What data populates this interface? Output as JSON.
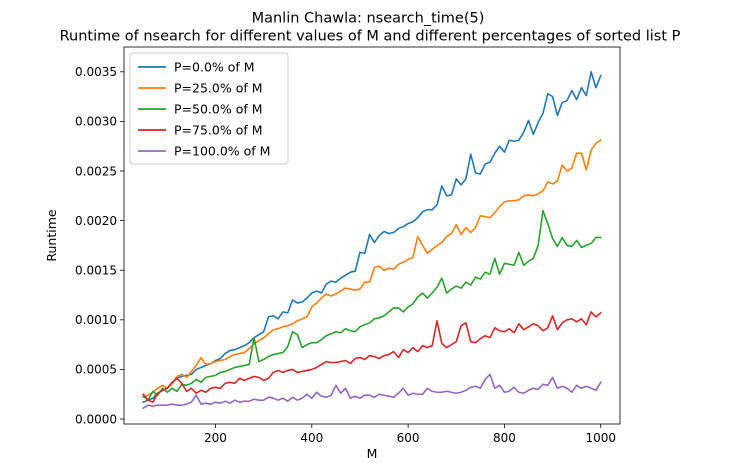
{
  "chart_data": {
    "type": "line",
    "title": "Manlin Chawla: nsearch_time(5)",
    "subtitle": "Runtime of nsearch for different values of M and different percentages of sorted list P",
    "xlabel": "M",
    "ylabel": "Runtime",
    "xlim": [
      10,
      1040
    ],
    "ylim": [
      -5e-05,
      0.00375
    ],
    "xticks": [
      200,
      400,
      600,
      800,
      1000
    ],
    "xtick_labels": [
      "200",
      "400",
      "600",
      "800",
      "1000"
    ],
    "yticks": [
      0.0,
      0.0005,
      0.001,
      0.0015,
      0.002,
      0.0025,
      0.003,
      0.0035
    ],
    "ytick_labels": [
      "0.0000",
      "0.0005",
      "0.0010",
      "0.0015",
      "0.0020",
      "0.0025",
      "0.0030",
      "0.0035"
    ],
    "grid": false,
    "legend_position": "top-left",
    "x": [
      50,
      60,
      70,
      80,
      90,
      100,
      110,
      120,
      130,
      140,
      150,
      160,
      170,
      180,
      190,
      200,
      210,
      220,
      230,
      240,
      250,
      260,
      270,
      280,
      290,
      300,
      310,
      320,
      330,
      340,
      350,
      360,
      370,
      380,
      390,
      400,
      410,
      420,
      430,
      440,
      450,
      460,
      470,
      480,
      490,
      500,
      510,
      520,
      530,
      540,
      550,
      560,
      570,
      580,
      590,
      600,
      610,
      620,
      630,
      640,
      650,
      660,
      670,
      680,
      690,
      700,
      710,
      720,
      730,
      740,
      750,
      760,
      770,
      780,
      790,
      800,
      810,
      820,
      830,
      840,
      850,
      860,
      870,
      880,
      890,
      900,
      910,
      920,
      930,
      940,
      950,
      960,
      970,
      980,
      990,
      1000
    ],
    "series": [
      {
        "name": "P=0.0% of M",
        "color": "#1f77b4",
        "values": [
          0.00017,
          0.00019,
          0.00021,
          0.00026,
          0.00029,
          0.00031,
          0.00037,
          0.00041,
          0.00043,
          0.00044,
          0.00045,
          0.0005,
          0.00052,
          0.00054,
          0.00056,
          0.00059,
          0.00061,
          0.00066,
          0.00069,
          0.0007,
          0.00072,
          0.00074,
          0.00077,
          0.00082,
          0.00085,
          0.00088,
          0.00103,
          0.00104,
          0.00101,
          0.00108,
          0.00107,
          0.0012,
          0.00117,
          0.00118,
          0.00122,
          0.00127,
          0.00129,
          0.00127,
          0.00136,
          0.00139,
          0.00138,
          0.00142,
          0.00145,
          0.00148,
          0.00149,
          0.00168,
          0.00167,
          0.00186,
          0.00178,
          0.00185,
          0.00189,
          0.00187,
          0.00188,
          0.00192,
          0.00194,
          0.00197,
          0.00199,
          0.00203,
          0.00209,
          0.00211,
          0.00211,
          0.00216,
          0.00235,
          0.00225,
          0.00226,
          0.00242,
          0.00236,
          0.00242,
          0.00267,
          0.00248,
          0.00247,
          0.00257,
          0.00259,
          0.00268,
          0.00275,
          0.00269,
          0.00281,
          0.0028,
          0.00281,
          0.00289,
          0.00301,
          0.00287,
          0.00299,
          0.00308,
          0.00328,
          0.00325,
          0.00306,
          0.00319,
          0.00321,
          0.00331,
          0.00322,
          0.00334,
          0.00326,
          0.0035,
          0.00334,
          0.00346
        ]
      },
      {
        "name": "P=25.0% of M",
        "color": "#ff7f0e",
        "values": [
          0.00022,
          0.00024,
          0.00027,
          0.00031,
          0.00034,
          0.00031,
          0.00036,
          0.00043,
          0.00045,
          0.00042,
          0.00048,
          0.00054,
          0.00062,
          0.00055,
          0.00056,
          0.00058,
          0.00059,
          0.0006,
          0.00063,
          0.00065,
          0.00066,
          0.00067,
          0.00071,
          0.00076,
          0.00079,
          0.00082,
          0.00086,
          0.0009,
          0.00091,
          0.00093,
          0.00094,
          0.00096,
          0.00099,
          0.00101,
          0.00103,
          0.00113,
          0.00117,
          0.00122,
          0.00126,
          0.00124,
          0.00126,
          0.00129,
          0.00132,
          0.00131,
          0.0013,
          0.00131,
          0.00138,
          0.00138,
          0.00153,
          0.00154,
          0.0015,
          0.00152,
          0.00151,
          0.00156,
          0.00158,
          0.00161,
          0.00163,
          0.00184,
          0.00175,
          0.00167,
          0.00171,
          0.00175,
          0.00178,
          0.00184,
          0.00187,
          0.00196,
          0.00186,
          0.00193,
          0.00188,
          0.00193,
          0.00205,
          0.00204,
          0.00203,
          0.00208,
          0.00214,
          0.00219,
          0.0022,
          0.0022,
          0.00221,
          0.00225,
          0.00226,
          0.00225,
          0.00227,
          0.0023,
          0.00239,
          0.00237,
          0.0024,
          0.00256,
          0.0025,
          0.00253,
          0.00268,
          0.00268,
          0.00251,
          0.00271,
          0.00278,
          0.00281
        ]
      },
      {
        "name": "P=50.0% of M",
        "color": "#2ca02c",
        "values": [
          0.00023,
          0.00019,
          0.00028,
          0.00024,
          0.00031,
          0.00027,
          0.00031,
          0.00028,
          0.00035,
          0.00034,
          0.00036,
          0.0004,
          0.00037,
          0.00042,
          0.00043,
          0.00044,
          0.00047,
          0.00048,
          0.0005,
          0.00052,
          0.00053,
          0.00054,
          0.00055,
          0.00082,
          0.00058,
          0.0006,
          0.00063,
          0.00065,
          0.00066,
          0.00067,
          0.00073,
          0.00088,
          0.00085,
          0.00072,
          0.00075,
          0.00077,
          0.00077,
          0.0008,
          0.00084,
          0.00086,
          0.00088,
          0.00087,
          0.00091,
          0.00089,
          0.00088,
          0.00093,
          0.00095,
          0.00097,
          0.00101,
          0.00102,
          0.00104,
          0.00108,
          0.00112,
          0.00112,
          0.00108,
          0.00113,
          0.00116,
          0.00123,
          0.00127,
          0.00122,
          0.00127,
          0.00133,
          0.00142,
          0.00127,
          0.00131,
          0.00134,
          0.00132,
          0.00138,
          0.00135,
          0.00143,
          0.00141,
          0.00148,
          0.00146,
          0.00162,
          0.00146,
          0.00157,
          0.00156,
          0.00155,
          0.00168,
          0.00155,
          0.00159,
          0.00162,
          0.00175,
          0.0021,
          0.00197,
          0.00182,
          0.00174,
          0.00183,
          0.00175,
          0.00174,
          0.0018,
          0.00173,
          0.00175,
          0.00177,
          0.00183,
          0.00183
        ]
      },
      {
        "name": "P=75.0% of M",
        "color": "#d62728",
        "values": [
          0.00025,
          0.00019,
          0.00017,
          0.00026,
          0.00029,
          0.00031,
          0.00037,
          0.00041,
          0.00036,
          0.00028,
          0.00031,
          0.00026,
          0.00029,
          0.00027,
          0.00031,
          0.00032,
          0.00031,
          0.00036,
          0.00037,
          0.00036,
          0.00041,
          0.00039,
          0.00041,
          0.00043,
          0.00042,
          0.00039,
          0.00041,
          0.00047,
          0.00049,
          0.00047,
          0.00049,
          0.0005,
          0.00047,
          0.00048,
          0.00049,
          0.0005,
          0.00052,
          0.00055,
          0.00058,
          0.00057,
          0.00057,
          0.00058,
          0.00059,
          0.00056,
          0.00061,
          0.00062,
          0.0006,
          0.00064,
          0.00063,
          0.00061,
          0.00064,
          0.00065,
          0.00068,
          0.00062,
          0.0007,
          0.00067,
          0.00072,
          0.00068,
          0.00074,
          0.00072,
          0.00074,
          0.00099,
          0.00076,
          0.00072,
          0.00075,
          0.00078,
          0.00094,
          0.00097,
          0.00078,
          0.00077,
          0.00081,
          0.00084,
          0.00082,
          0.00092,
          0.00089,
          0.00088,
          0.00091,
          0.00087,
          0.00096,
          0.0009,
          0.00093,
          0.00096,
          0.00094,
          0.00089,
          0.00092,
          0.00104,
          0.0009,
          0.00097,
          0.001,
          0.00101,
          0.00098,
          0.00101,
          0.00095,
          0.00108,
          0.00103,
          0.00107
        ]
      },
      {
        "name": "P=100.0% of M",
        "color": "#9467bd",
        "values": [
          0.00011,
          0.00014,
          0.00013,
          0.00014,
          0.00014,
          0.00014,
          0.00015,
          0.00014,
          0.00014,
          0.00015,
          0.00017,
          0.00024,
          0.00015,
          0.00016,
          0.00015,
          0.00017,
          0.00016,
          0.00018,
          0.00016,
          0.00019,
          0.00017,
          0.00018,
          0.00018,
          0.0002,
          0.00019,
          0.00019,
          0.00022,
          0.00021,
          0.00019,
          0.00021,
          0.00018,
          0.00022,
          0.00019,
          0.00021,
          0.00025,
          0.00021,
          0.00027,
          0.00023,
          0.00022,
          0.00024,
          0.00034,
          0.00026,
          0.00031,
          0.00021,
          0.00023,
          0.00021,
          0.00024,
          0.00024,
          0.00022,
          0.00025,
          0.00024,
          0.00023,
          0.00022,
          0.00026,
          0.00031,
          0.00024,
          0.00026,
          0.00025,
          0.00025,
          0.00031,
          0.00028,
          0.00027,
          0.00027,
          0.00028,
          0.00027,
          0.00026,
          0.00027,
          0.00029,
          0.00032,
          0.00033,
          0.00031,
          0.0004,
          0.00045,
          0.00031,
          0.00034,
          0.00027,
          0.00028,
          0.00032,
          0.00027,
          0.00026,
          0.00029,
          0.00031,
          0.0003,
          0.00035,
          0.00034,
          0.00042,
          0.00031,
          0.00033,
          0.00031,
          0.00027,
          0.00034,
          0.00031,
          0.00033,
          0.00031,
          0.00029,
          0.00037
        ]
      }
    ]
  }
}
